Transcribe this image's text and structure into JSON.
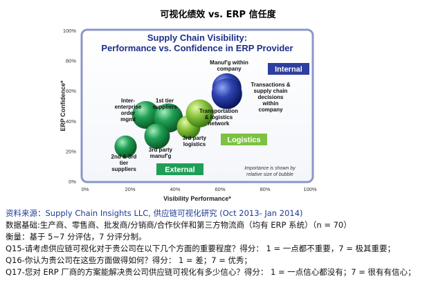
{
  "page": {
    "title": "可视化绩效 vs. ERP 信任度"
  },
  "chart_data": {
    "type": "scatter",
    "title_line1": "Supply Chain Visibility:",
    "title_line2": "Performance vs. Confidence in ERP Provider",
    "xlabel": "Visibility Performance*",
    "ylabel": "ERP Confidence*",
    "xlim": [
      0,
      100
    ],
    "ylim": [
      0,
      100
    ],
    "xticks": [
      "0%",
      "20%",
      "40%",
      "60%",
      "80%",
      "100%"
    ],
    "yticks": [
      "0%",
      "20%",
      "40%",
      "60%",
      "80%",
      "100%"
    ],
    "grid": false,
    "bubble_note_line1": "Importance is shown by",
    "bubble_note_line2": "relative size of bubble",
    "groups": [
      {
        "name": "Internal",
        "color": "#2c3e9e"
      },
      {
        "name": "Logistics",
        "color": "#7cc142"
      },
      {
        "name": "External",
        "color": "#1e9e57"
      }
    ],
    "points": [
      {
        "label": "Inter-enterprise order mgmt",
        "x": 27,
        "y": 44,
        "size": 1.0,
        "group": "External"
      },
      {
        "label": "1st tier suppliers",
        "x": 37,
        "y": 42,
        "size": 1.05,
        "group": "External"
      },
      {
        "label": "2nd & 3rd tier suppliers",
        "x": 18,
        "y": 23,
        "size": 0.8,
        "group": "External"
      },
      {
        "label": "3rd party manuf'g",
        "x": 32,
        "y": 30,
        "size": 0.92,
        "group": "External"
      },
      {
        "label": "3rd party logistics",
        "x": 46,
        "y": 36,
        "size": 0.85,
        "group": "Logistics"
      },
      {
        "label": "Transportation & logistics network",
        "x": 51,
        "y": 45,
        "size": 1.0,
        "group": "Logistics"
      },
      {
        "label": "Manuf'g within company",
        "x": 63,
        "y": 62,
        "size": 1.05,
        "group": "Internal"
      },
      {
        "label": "Transactions & supply chain decisions within company",
        "x": 63,
        "y": 58,
        "size": 1.1,
        "group": "Internal"
      }
    ]
  },
  "notes": {
    "source": "资料来源：Supply Chain Insights LLC, 供应链可视化研究 (Oct 2013- Jan 2014)",
    "basis": "数据基础:生产商、零售商、批发商/分销商/合作伙伴和第三方物流商（均有 ERP 系统）（n = 70）",
    "measure": "衡量：基于 5~7 分评估，7 分评分制。",
    "q15": "Q15-请考虑供应链可视化对于贵公司在以下几个方面的重要程度？得分：  1 = 一点都不重要，7 = 极其重要；",
    "q16": "Q16-你认为贵公司在这些方面做得如何？得分：  1 = 差；7 = 优秀；",
    "q17": "Q17-您对 ERP 厂商的方案能解决贵公司供应链可视化有多少信心？得分：  1 = 一点信心都没有；7 = 很有有信心；"
  }
}
